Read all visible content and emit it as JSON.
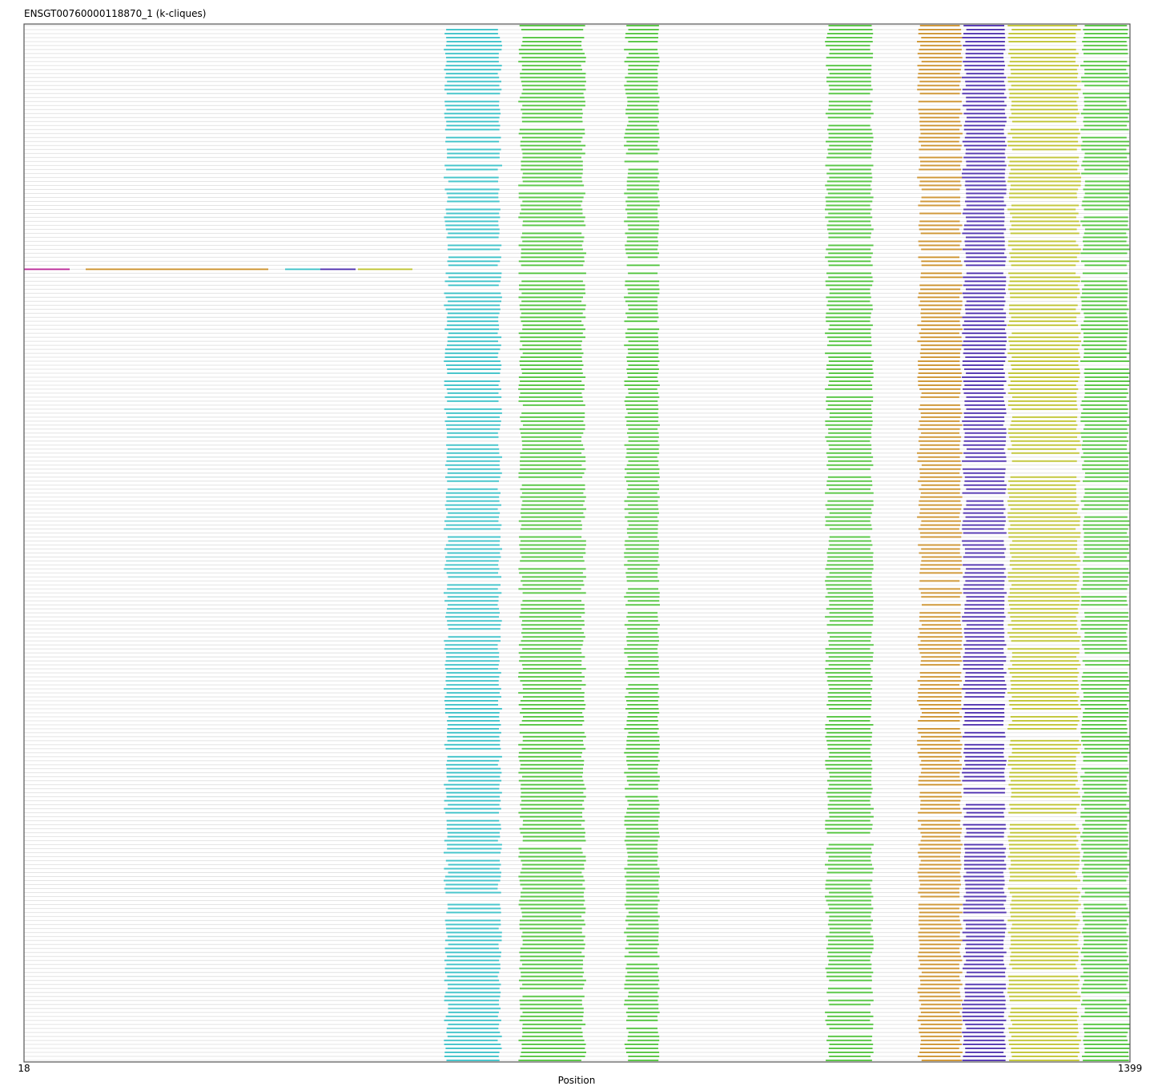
{
  "chart_data": {
    "type": "alignment-track",
    "title": "ENSGT00760000118870_1 (k-cliques)",
    "xlabel": "Position",
    "ylabel": "",
    "x_ticks": [
      "18",
      "1399"
    ],
    "xlim": [
      18,
      1399
    ],
    "grid": false,
    "legend": "none",
    "row_count": 260,
    "background_color": "#e4e4e4",
    "segments": [
      {
        "name": "cyan",
        "color": "#4ac6cc",
        "start": 545,
        "end": 615
      },
      {
        "name": "green-a",
        "color": "#5ec84b",
        "start": 638,
        "end": 720
      },
      {
        "name": "green-b",
        "color": "#5ec84b",
        "start": 770,
        "end": 812
      },
      {
        "name": "green-c",
        "color": "#5ec84b",
        "start": 1021,
        "end": 1079
      },
      {
        "name": "orange",
        "color": "#d09a3c",
        "start": 1136,
        "end": 1190
      },
      {
        "name": "purple",
        "color": "#5b3fb5",
        "start": 1192,
        "end": 1245
      },
      {
        "name": "olive",
        "color": "#c4c840",
        "start": 1249,
        "end": 1338
      },
      {
        "name": "green-d",
        "color": "#5ec84b",
        "start": 1340,
        "end": 1399
      }
    ],
    "special_row": {
      "row": 61,
      "pieces": [
        {
          "color": "#c03aa0",
          "start": 18,
          "end": 75
        },
        {
          "color": "#d09a3c",
          "start": 95,
          "end": 323
        },
        {
          "color": "#4ac6cc",
          "start": 344,
          "end": 388
        },
        {
          "color": "#5b3fb5",
          "start": 388,
          "end": 432
        },
        {
          "color": "#c4c840",
          "start": 435,
          "end": 460
        },
        {
          "color": "#c4c840",
          "start": 460,
          "end": 503
        }
      ]
    }
  }
}
